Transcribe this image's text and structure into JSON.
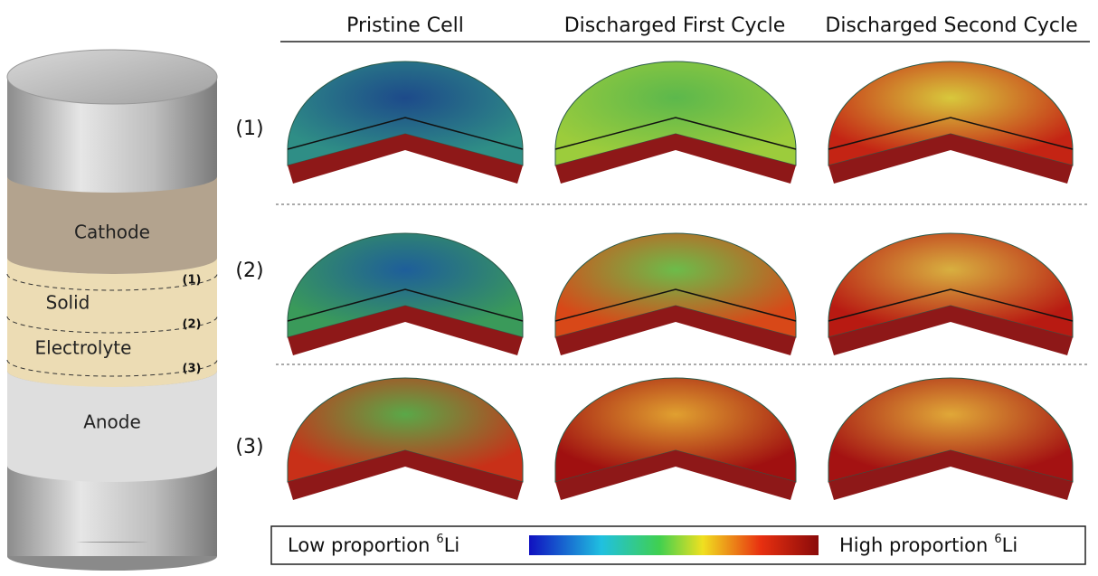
{
  "columns": [
    "Pristine Cell",
    "Discharged First Cycle",
    "Discharged Second Cycle"
  ],
  "rows": [
    "(1)",
    "(2)",
    "(3)"
  ],
  "cylinder": {
    "layers": [
      "Cathode",
      "Solid",
      "Electrolyte",
      "Anode"
    ],
    "interfaces": [
      "(1)",
      "(2)",
      "(3)"
    ]
  },
  "legend": {
    "low": "Low proportion",
    "high": "High proportion",
    "isotope_mass": "6",
    "element": "Li"
  }
}
